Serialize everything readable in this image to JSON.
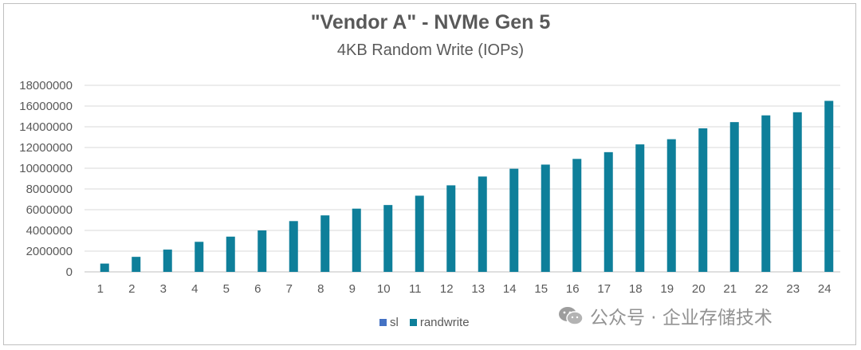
{
  "chart_data": {
    "type": "bar",
    "title": "\"Vendor A\" - NVMe Gen 5",
    "subtitle": "4KB Random Write (IOPs)",
    "xlabel": "",
    "ylabel": "",
    "categories": [
      "1",
      "2",
      "3",
      "4",
      "5",
      "6",
      "7",
      "8",
      "9",
      "10",
      "11",
      "12",
      "13",
      "14",
      "15",
      "16",
      "17",
      "18",
      "19",
      "20",
      "21",
      "22",
      "23",
      "24"
    ],
    "series": [
      {
        "name": "sl",
        "color": "#4472c4",
        "values": [
          0,
          0,
          0,
          0,
          0,
          0,
          0,
          0,
          0,
          0,
          0,
          0,
          0,
          0,
          0,
          0,
          0,
          0,
          0,
          0,
          0,
          0,
          0,
          0
        ]
      },
      {
        "name": "randwrite",
        "color": "#0e7f9a",
        "values": [
          800000,
          1450000,
          2150000,
          2900000,
          3400000,
          4000000,
          4900000,
          5450000,
          6100000,
          6450000,
          7350000,
          8350000,
          9200000,
          9950000,
          10350000,
          10900000,
          11550000,
          12300000,
          12800000,
          13850000,
          14450000,
          15100000,
          15400000,
          16500000
        ]
      }
    ],
    "y_ticks": [
      "0",
      "2000000",
      "4000000",
      "6000000",
      "8000000",
      "10000000",
      "12000000",
      "14000000",
      "16000000",
      "18000000"
    ],
    "ylim": [
      0,
      18000000
    ],
    "grid": true,
    "legend": "bottom"
  },
  "watermark": {
    "text": "公众号 · 企业存储技术",
    "icon": "wechat-icon"
  }
}
